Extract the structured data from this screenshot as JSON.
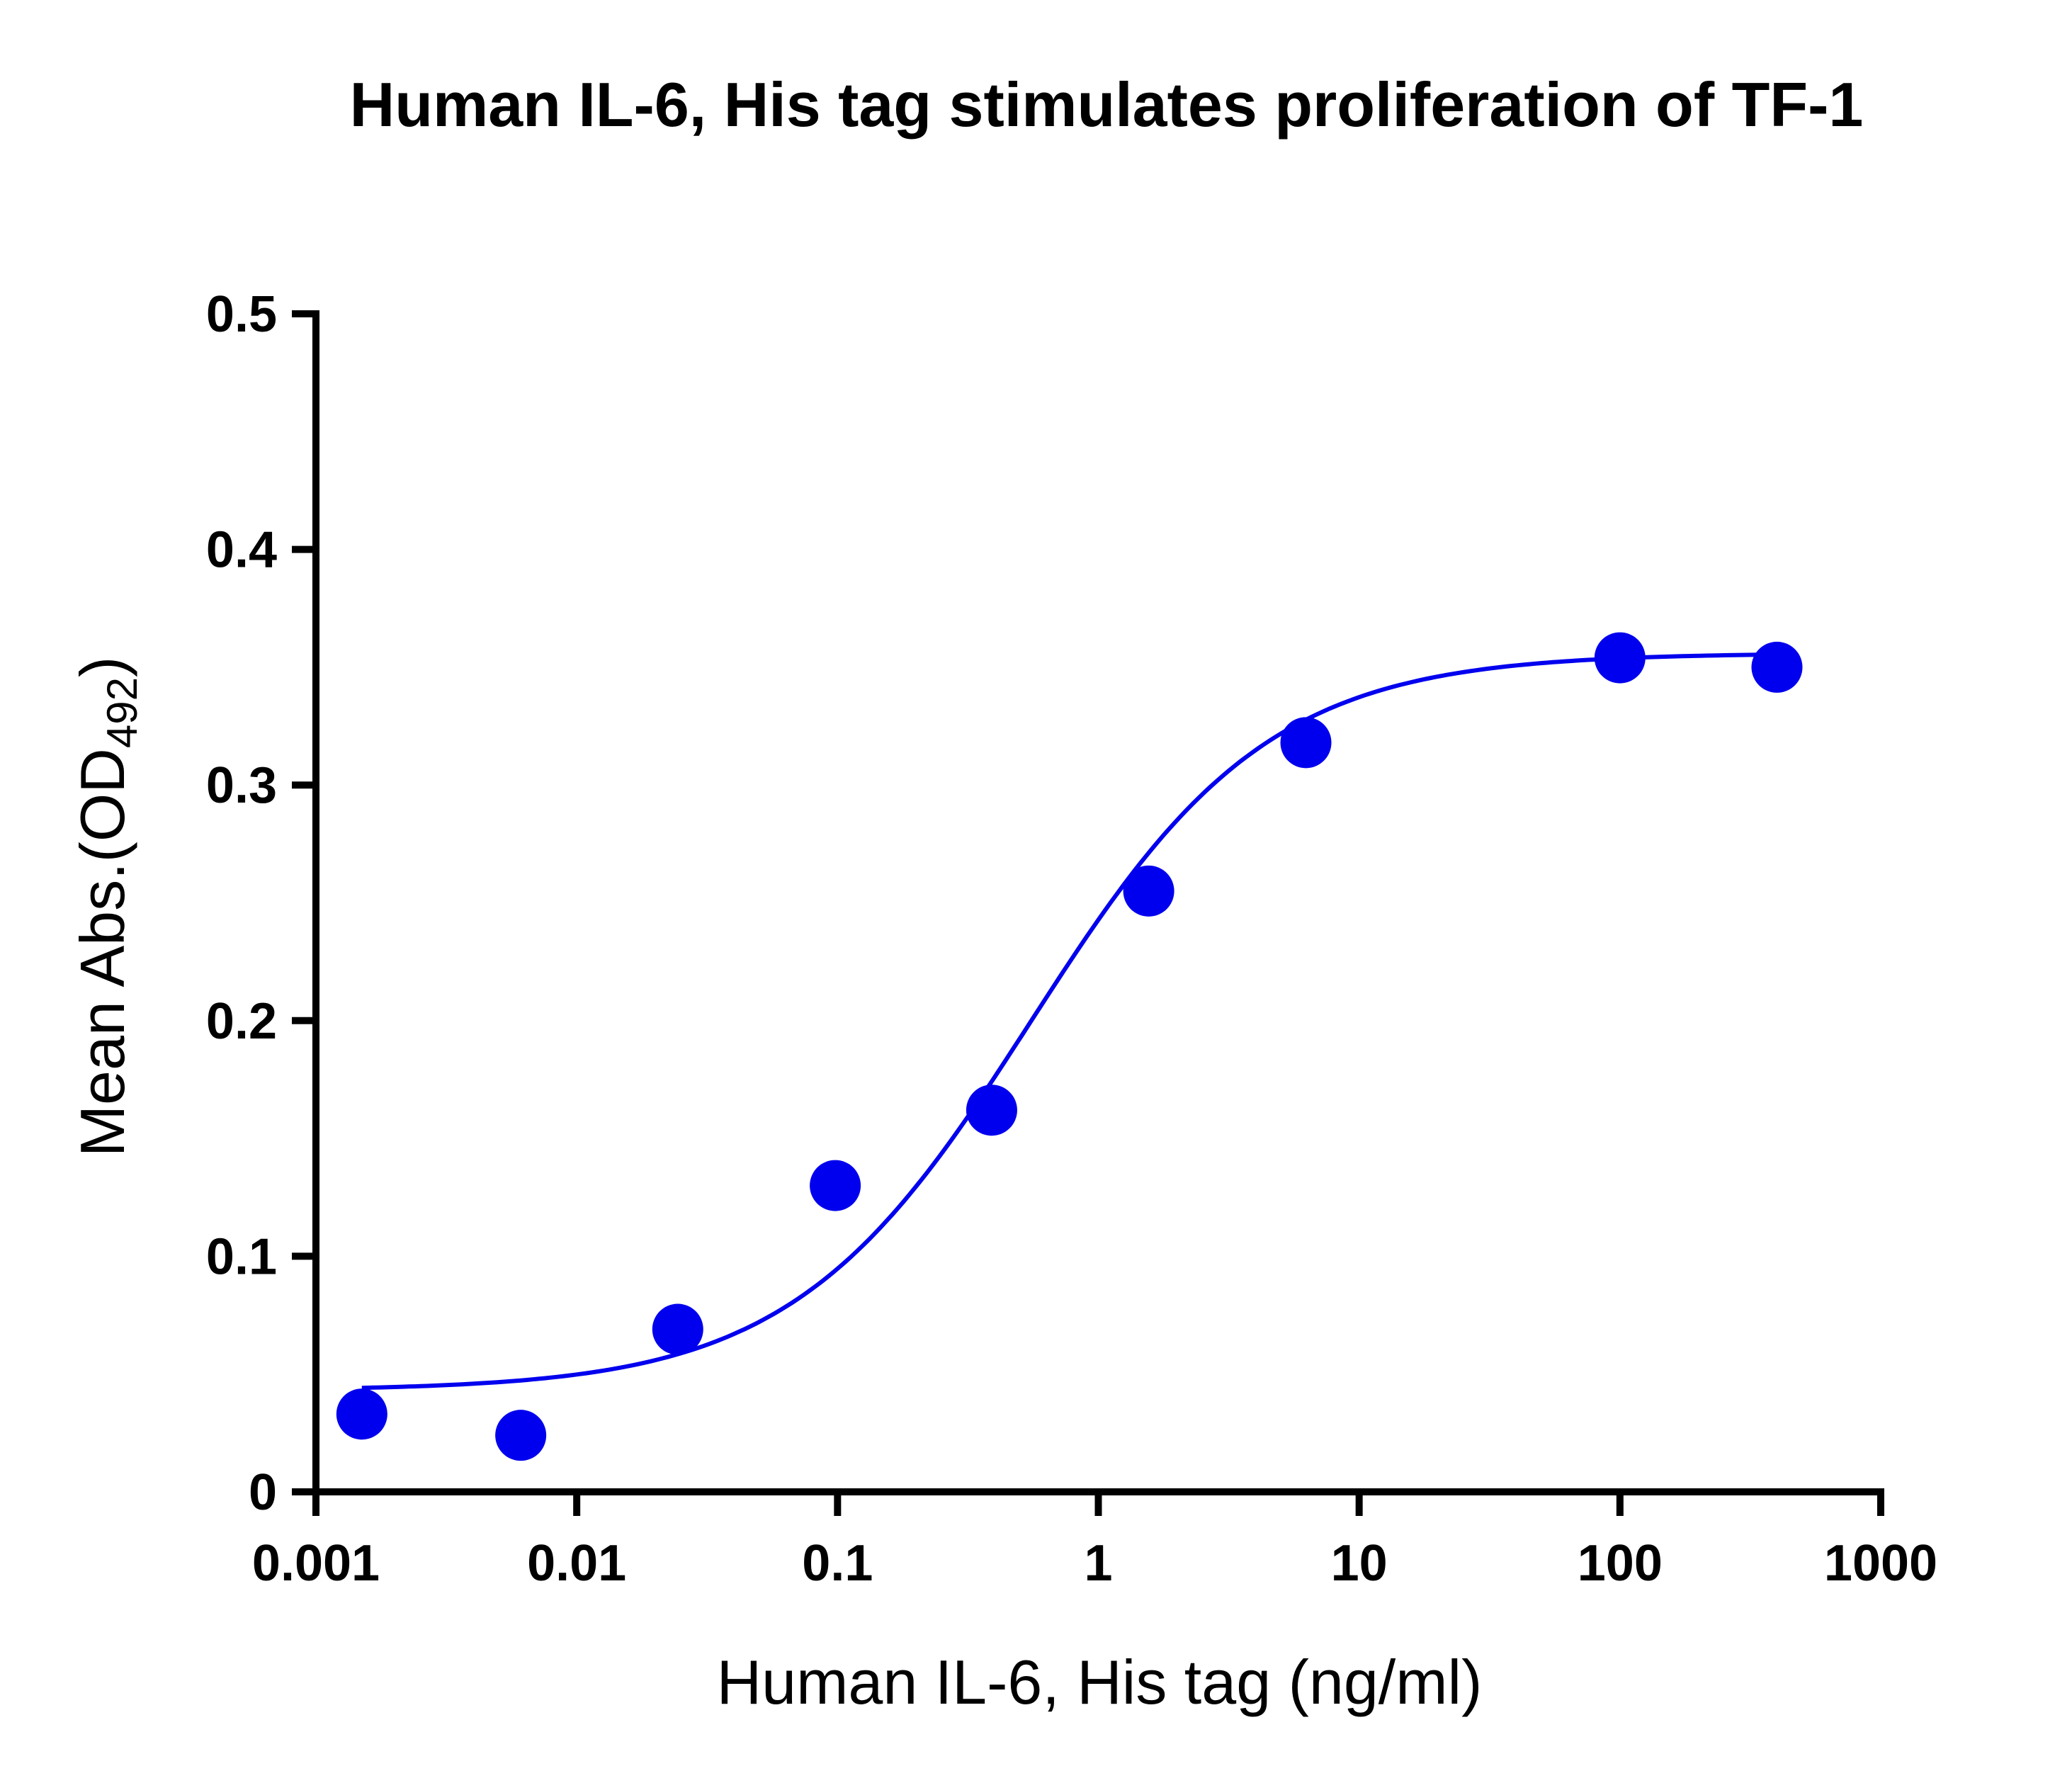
{
  "chart_data": {
    "type": "scatter",
    "title": "Human IL-6, His tag stimulates proliferation of TF-1",
    "xlabel": "Human IL-6, His tag (ng/ml)",
    "ylabel": {
      "prefix": "Mean Abs.(OD",
      "subscript": "492",
      "suffix": ")"
    },
    "xscale": "log",
    "xlim": [
      0.001,
      1000
    ],
    "ylim": [
      0,
      0.5
    ],
    "x_ticks": [
      0.001,
      0.01,
      0.1,
      1,
      10,
      100,
      1000
    ],
    "x_tick_labels": [
      "0.001",
      "0.01",
      "0.1",
      "1",
      "10",
      "100",
      "1000"
    ],
    "y_ticks": [
      0,
      0.1,
      0.2,
      0.3,
      0.4,
      0.5
    ],
    "y_tick_labels": [
      "0",
      "0.1",
      "0.2",
      "0.3",
      "0.4",
      "0.5"
    ],
    "grid": false,
    "color": "#0000ee",
    "points": {
      "x": [
        0.0015,
        0.0061,
        0.0244,
        0.098,
        0.39,
        1.56,
        6.25,
        100,
        400
      ],
      "y": [
        0.033,
        0.024,
        0.069,
        0.13,
        0.162,
        0.255,
        0.318,
        0.354,
        0.35
      ]
    },
    "fit": {
      "model": "4PL",
      "bottom": 0.043,
      "top": 0.356,
      "ec50": 0.55,
      "hill": 0.95,
      "x_range": [
        0.0015,
        400
      ]
    }
  }
}
